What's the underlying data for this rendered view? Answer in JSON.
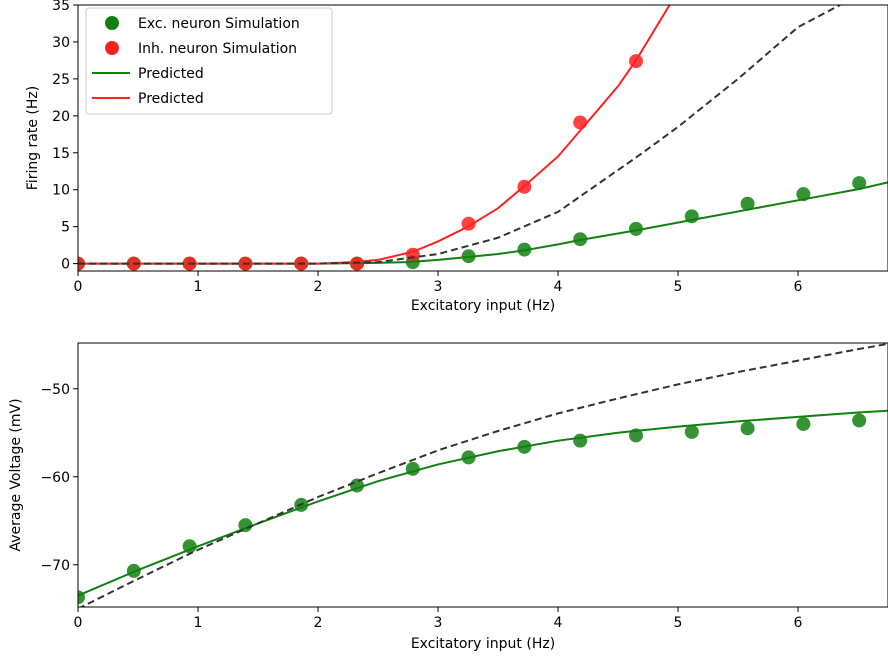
{
  "chart_data": [
    {
      "type": "line",
      "xlabel": "Excitatory input (Hz)",
      "ylabel": "Firing rate (Hz)",
      "xlim": [
        0,
        6.75
      ],
      "ylim": [
        -1,
        35
      ],
      "xticks": [
        0,
        1,
        2,
        3,
        4,
        5,
        6
      ],
      "yticks": [
        0,
        5,
        10,
        15,
        20,
        25,
        30,
        35
      ],
      "legend": "upper left",
      "series": [
        {
          "name": "Exc. neuron Simulation",
          "color": "#118011",
          "style": "marker",
          "x": [
            0,
            0.465,
            0.93,
            1.395,
            1.86,
            2.325,
            2.79,
            3.255,
            3.72,
            4.185,
            4.65,
            5.115,
            5.58,
            6.045,
            6.51
          ],
          "values": [
            0,
            0,
            0,
            0,
            0,
            0,
            0.2,
            1,
            1.9,
            3.3,
            4.7,
            6.4,
            8.1,
            9.4,
            10.9
          ]
        },
        {
          "name": "Inh. neuron Simulation",
          "color": "#ff2020",
          "style": "marker",
          "x": [
            0,
            0.465,
            0.93,
            1.395,
            1.86,
            2.325,
            2.79,
            3.255,
            3.72,
            4.185,
            4.65
          ],
          "values": [
            0,
            0,
            0,
            0,
            0,
            0,
            1.2,
            5.4,
            10.4,
            19.1,
            27.4
          ]
        },
        {
          "name": "Predicted",
          "color": "#118011",
          "style": "line",
          "x": [
            0,
            2,
            2.5,
            2.75,
            3,
            3.25,
            3.5,
            3.72,
            4,
            4.185,
            4.65,
            5.115,
            5.58,
            6.045,
            6.51,
            6.75
          ],
          "values": [
            0,
            0,
            0.1,
            0.2,
            0.5,
            0.9,
            1.3,
            1.8,
            2.6,
            3.2,
            4.5,
            5.9,
            7.3,
            8.7,
            10.1,
            11
          ]
        },
        {
          "name": "Predicted",
          "color": "#ff2020",
          "style": "line",
          "x": [
            0,
            2,
            2.3,
            2.5,
            2.79,
            3,
            3.25,
            3.5,
            3.72,
            4,
            4.185,
            4.5,
            4.65,
            4.93
          ],
          "values": [
            0,
            0,
            0.2,
            0.5,
            1.6,
            3,
            5,
            7.5,
            10.5,
            14.5,
            18,
            24,
            27.5,
            35
          ]
        },
        {
          "color": "#333333",
          "style": "dashed",
          "x": [
            0,
            2,
            2.5,
            3,
            3.5,
            4,
            4.68,
            5,
            5.5,
            6,
            6.35
          ],
          "values": [
            0,
            0,
            0.2,
            1.3,
            3.5,
            7,
            14.7,
            18.5,
            25,
            32,
            35
          ]
        }
      ]
    },
    {
      "type": "line",
      "xlabel": "Excitatory input (Hz)",
      "ylabel": "Average Voltage (mV)",
      "xlim": [
        0,
        6.75
      ],
      "ylim": [
        -74.8,
        -44.8
      ],
      "xticks": [
        0,
        1,
        2,
        3,
        4,
        5,
        6
      ],
      "yticks": [
        {
          "value": -70,
          "label": "−70"
        },
        {
          "value": -60,
          "label": "−60"
        },
        {
          "value": -50,
          "label": "−50"
        }
      ],
      "series": [
        {
          "color": "#118011",
          "style": "marker",
          "x": [
            0,
            0.465,
            0.93,
            1.395,
            1.86,
            2.325,
            2.79,
            3.255,
            3.72,
            4.185,
            4.65,
            5.115,
            5.58,
            6.045,
            6.51
          ],
          "values": [
            -73.7,
            -70.7,
            -67.9,
            -65.5,
            -63.2,
            -61.0,
            -59.1,
            -57.8,
            -56.6,
            -55.9,
            -55.3,
            -54.9,
            -54.5,
            -54.0,
            -53.6
          ]
        },
        {
          "color": "#118011",
          "style": "line",
          "x": [
            0,
            0.5,
            1,
            1.5,
            2,
            2.5,
            3,
            3.5,
            4,
            4.5,
            5,
            5.5,
            6,
            6.5,
            6.75
          ],
          "values": [
            -73.5,
            -70.6,
            -67.9,
            -65.3,
            -62.8,
            -60.5,
            -58.6,
            -57.1,
            -55.9,
            -55.0,
            -54.3,
            -53.7,
            -53.2,
            -52.7,
            -52.5
          ]
        },
        {
          "color": "#333333",
          "style": "dashed",
          "x": [
            0,
            0.5,
            1,
            1.5,
            2,
            2.5,
            3,
            3.5,
            4,
            4.5,
            5,
            5.5,
            6,
            6.5,
            6.75
          ],
          "values": [
            -75,
            -71.6,
            -68.3,
            -65.3,
            -62.3,
            -59.6,
            -57,
            -54.8,
            -52.8,
            -51.1,
            -49.5,
            -48.1,
            -46.8,
            -45.5,
            -44.9
          ]
        }
      ]
    }
  ]
}
